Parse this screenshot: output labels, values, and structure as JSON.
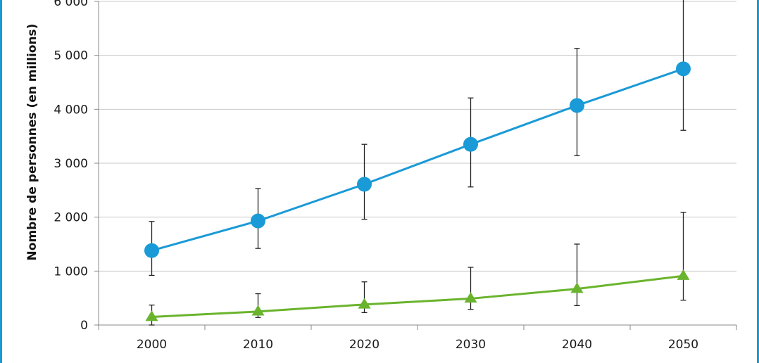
{
  "chart_data": {
    "type": "line",
    "title": "",
    "xlabel": "",
    "ylabel": "Nombre de personnes (en millions)",
    "x": [
      "2000",
      "2010",
      "2020",
      "2030",
      "2040",
      "2050"
    ],
    "y_ticks": [
      "0",
      "1 000",
      "2 000",
      "3 000",
      "4 000",
      "5 000",
      "6 000"
    ],
    "ylim": [
      0,
      6000
    ],
    "grid": "horizontal",
    "series": [
      {
        "color": "#1a9ad6",
        "marker": "circle",
        "values": [
          1380,
          1930,
          2610,
          3350,
          4070,
          4750
        ],
        "error_low": [
          920,
          1420,
          1960,
          2560,
          3140,
          3610
        ],
        "error_high": [
          1920,
          2530,
          3350,
          4210,
          5130,
          6100
        ]
      },
      {
        "color": "#6ab42d",
        "marker": "triangle",
        "values": [
          150,
          250,
          380,
          490,
          670,
          910
        ],
        "error_low": [
          0,
          140,
          230,
          290,
          360,
          460
        ],
        "error_high": [
          370,
          580,
          800,
          1070,
          1500,
          2090
        ]
      }
    ]
  }
}
